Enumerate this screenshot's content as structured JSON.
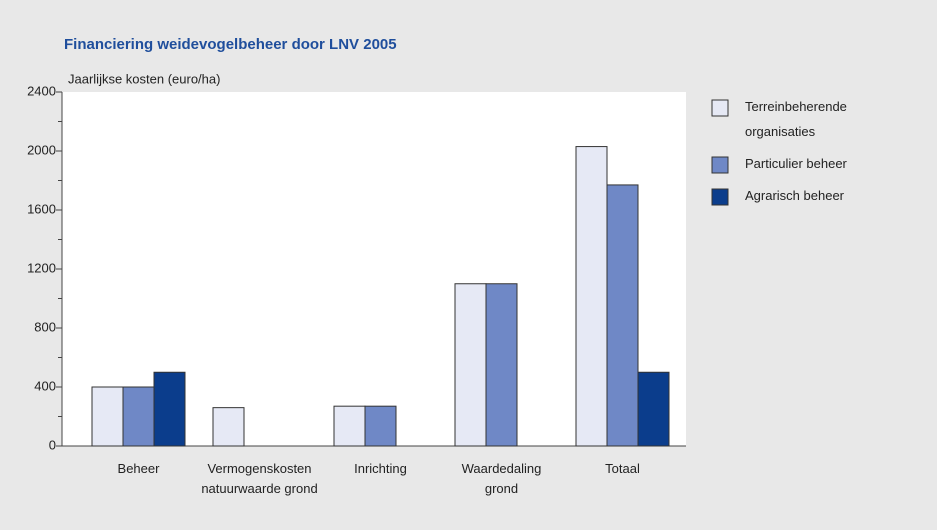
{
  "chart_data": {
    "type": "bar",
    "title": "Financiering weidevogelbeheer door LNV 2005",
    "y_label": "Jaarlijkse kosten (euro/ha)",
    "categories": [
      [
        "Beheer"
      ],
      [
        "Vermogenskosten",
        "natuurwaarde grond"
      ],
      [
        "Inrichting"
      ],
      [
        "Waardedaling",
        "grond"
      ],
      [
        "Totaal"
      ]
    ],
    "series": [
      {
        "name": [
          "Terreinbeherende",
          "organisaties"
        ],
        "color": "#e6e9f5",
        "values": [
          400,
          260,
          270,
          1100,
          2030
        ]
      },
      {
        "name": [
          "Particulier beheer"
        ],
        "color": "#6f88c6",
        "values": [
          400,
          0,
          270,
          1100,
          1770
        ]
      },
      {
        "name": [
          "Agrarisch beheer"
        ],
        "color": "#0b3d8c",
        "values": [
          500,
          0,
          0,
          0,
          500
        ]
      }
    ],
    "ylim": [
      0,
      2400
    ],
    "yticks": [
      0,
      400,
      800,
      1200,
      1600,
      2000,
      2400
    ],
    "yticks_minor": [
      200,
      600,
      1000,
      1400,
      1800,
      2200
    ],
    "legend": "right"
  }
}
